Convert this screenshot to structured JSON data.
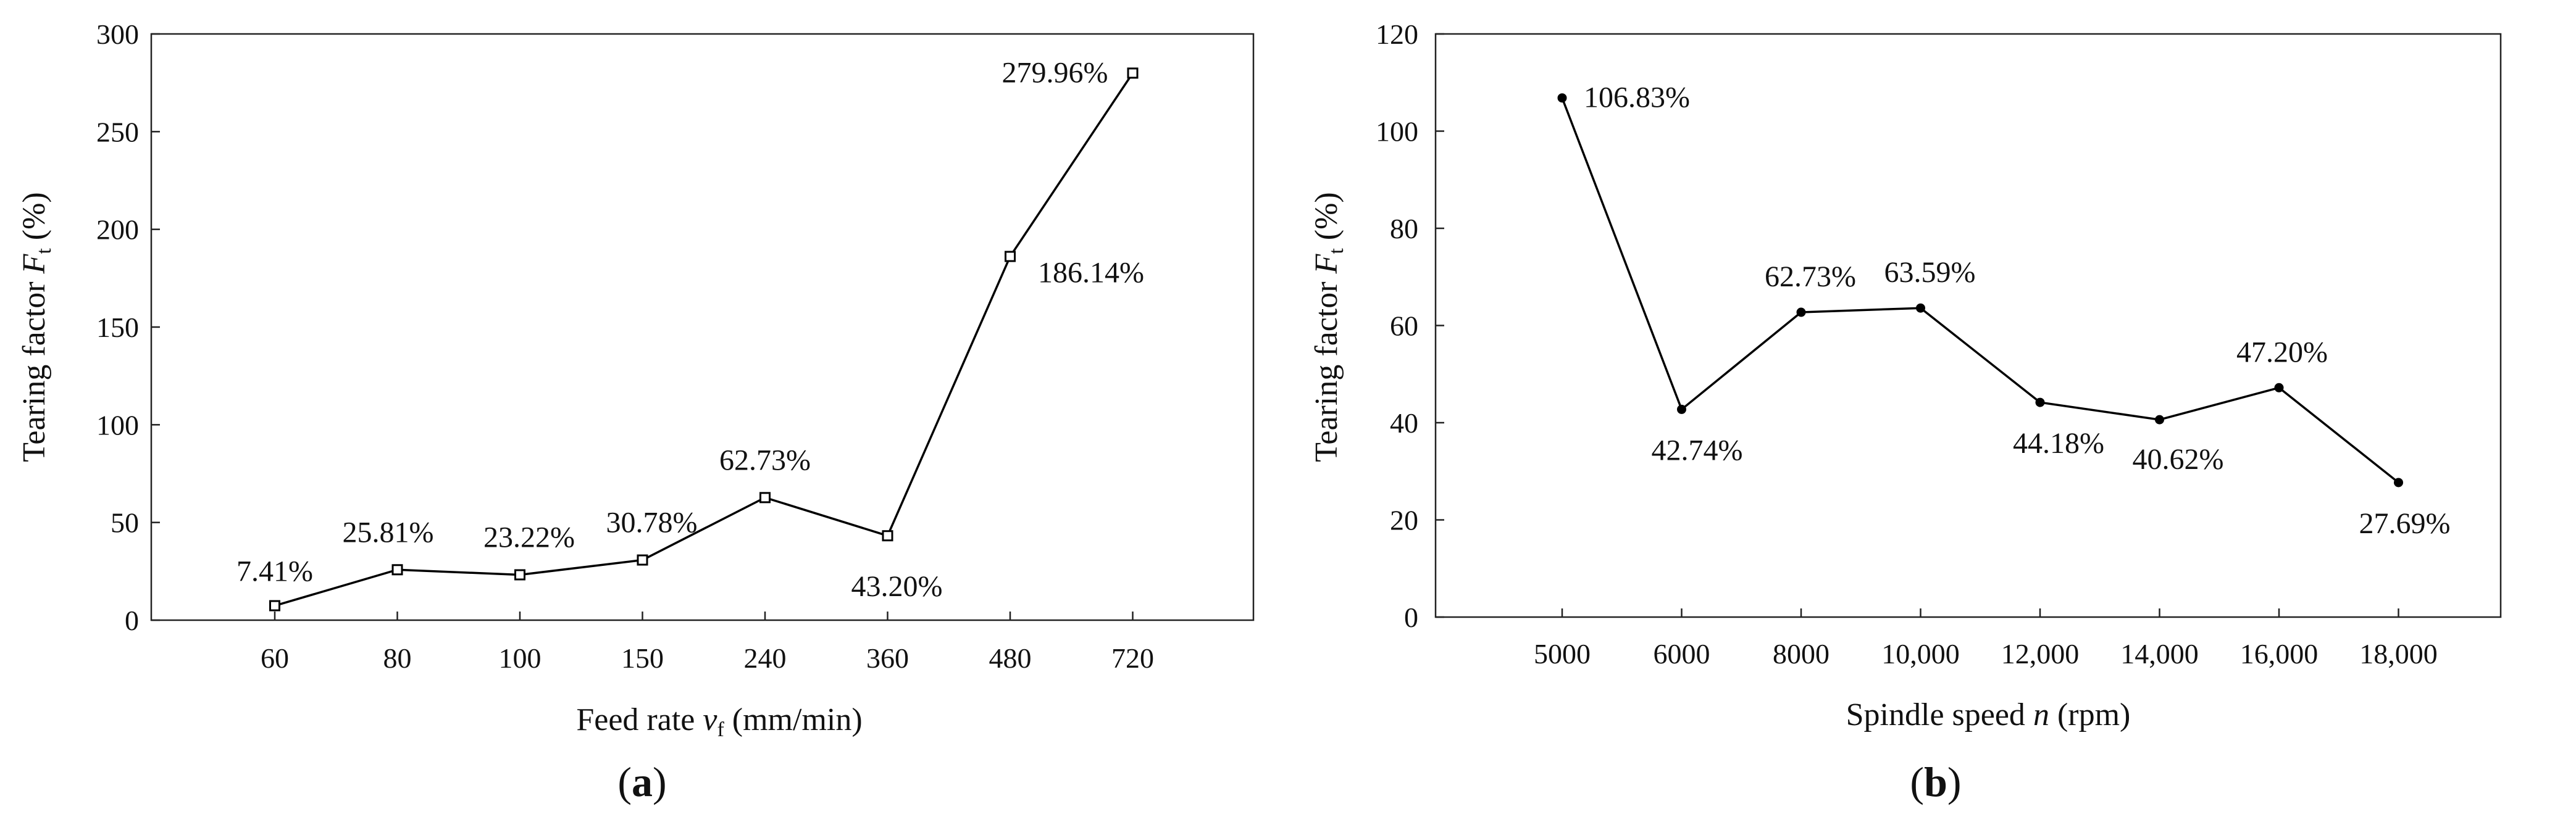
{
  "chart_data": [
    {
      "id": "a",
      "type": "line",
      "panel_label_open": "(",
      "panel_label_letter": "a",
      "panel_label_close": ")",
      "xlabel_prefix": "Feed rate ",
      "xlabel_var": "v",
      "xlabel_sub": "f",
      "xlabel_suffix": " (mm/min)",
      "ylabel_prefix": "Tearing factor ",
      "ylabel_var": "F",
      "ylabel_sub": "t",
      "ylabel_suffix": " (%)",
      "categories": [
        "60",
        "80",
        "100",
        "150",
        "240",
        "360",
        "480",
        "720"
      ],
      "values": [
        7.41,
        25.81,
        23.22,
        30.78,
        62.73,
        43.2,
        186.14,
        279.96
      ],
      "data_labels": [
        "7.41%",
        "25.81%",
        "23.22%",
        "30.78%",
        "62.73%",
        "43.20%",
        "186.14%",
        "279.96%"
      ],
      "ylim": [
        0,
        300
      ],
      "yticks": [
        "0",
        "50",
        "100",
        "150",
        "200",
        "250",
        "300"
      ],
      "marker": "open-square",
      "grid": false,
      "legend": false,
      "line_color": "#000000"
    },
    {
      "id": "b",
      "type": "line",
      "panel_label_open": "(",
      "panel_label_letter": "b",
      "panel_label_close": ")",
      "xlabel_prefix": "Spindle speed ",
      "xlabel_var": "n",
      "xlabel_sub": "",
      "xlabel_suffix": " (rpm)",
      "ylabel_prefix": "Tearing factor ",
      "ylabel_var": "F",
      "ylabel_sub": "t",
      "ylabel_suffix": " (%)",
      "categories": [
        "5000",
        "6000",
        "8000",
        "10,000",
        "12,000",
        "14,000",
        "16,000",
        "18,000"
      ],
      "values": [
        106.83,
        42.74,
        62.73,
        63.59,
        44.18,
        40.62,
        47.2,
        27.69
      ],
      "data_labels": [
        "106.83%",
        "42.74%",
        "62.73%",
        "63.59%",
        "44.18%",
        "40.62%",
        "47.20%",
        "27.69%"
      ],
      "ylim": [
        0,
        120
      ],
      "yticks": [
        "0",
        "20",
        "40",
        "60",
        "80",
        "100",
        "120"
      ],
      "marker": "filled-circle",
      "grid": false,
      "legend": false,
      "line_color": "#000000"
    }
  ]
}
